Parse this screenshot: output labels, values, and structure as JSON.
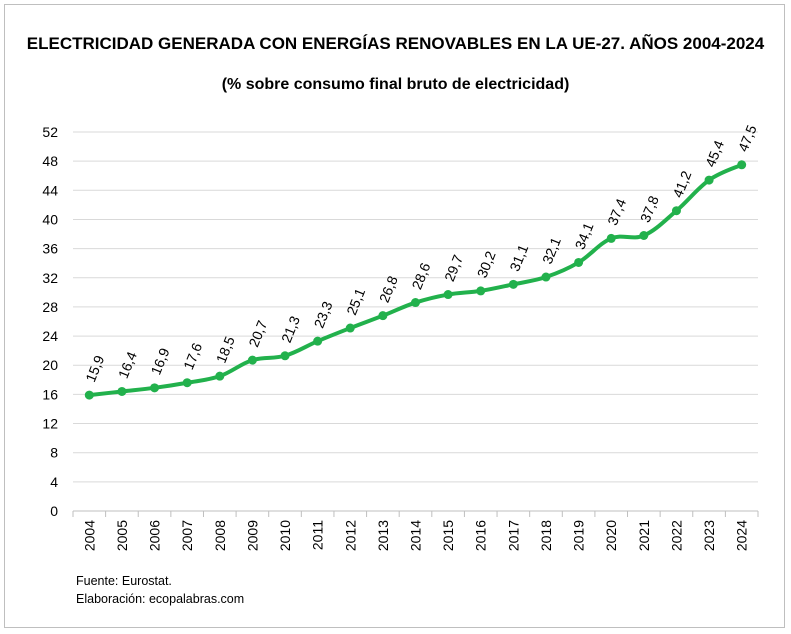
{
  "title": "ELECTRICIDAD GENERADA CON ENERGÍAS RENOVABLES EN LA UE-27. AÑOS 2004-2024",
  "subtitle": "(% sobre consumo final bruto de electricidad)",
  "source_line1": "Fuente: Eurostat.",
  "source_line2": "Elaboración: ecopalabras.com",
  "colors": {
    "line": "#22b14c",
    "grid": "#d9d9d9",
    "axis": "#bfbfbf"
  },
  "chart_data": {
    "type": "line",
    "title": "ELECTRICIDAD GENERADA CON ENERGÍAS RENOVABLES EN LA UE-27. AÑOS 2004-2024",
    "subtitle": "(% sobre consumo final bruto de electricidad)",
    "categories": [
      "2004",
      "2005",
      "2006",
      "2007",
      "2008",
      "2009",
      "2010",
      "2011",
      "2012",
      "2013",
      "2014",
      "2015",
      "2016",
      "2017",
      "2018",
      "2019",
      "2020",
      "2021",
      "2022",
      "2023",
      "2024"
    ],
    "values": [
      15.9,
      16.4,
      16.9,
      17.6,
      18.5,
      20.7,
      21.3,
      23.3,
      25.1,
      26.8,
      28.6,
      29.7,
      30.2,
      31.1,
      32.1,
      34.1,
      37.4,
      37.8,
      41.2,
      45.4,
      47.5
    ],
    "labels": [
      "15,9",
      "16,4",
      "16,9",
      "17,6",
      "18,5",
      "20,7",
      "21,3",
      "23,3",
      "25,1",
      "26,8",
      "28,6",
      "29,7",
      "30,2",
      "31,1",
      "32,1",
      "34,1",
      "37,4",
      "37,8",
      "41,2",
      "45,4",
      "47,5"
    ],
    "yticks": [
      "0",
      "4",
      "8",
      "12",
      "16",
      "20",
      "24",
      "28",
      "32",
      "36",
      "40",
      "44",
      "48",
      "52"
    ],
    "ylim": [
      0,
      52
    ],
    "grid": true,
    "legend": "none"
  }
}
